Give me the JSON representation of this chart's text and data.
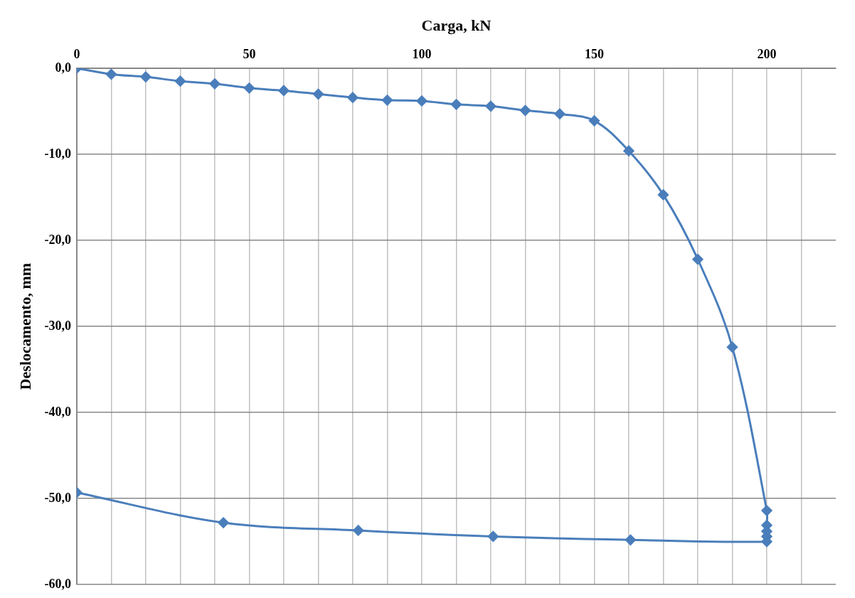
{
  "chart_data": {
    "type": "line",
    "xlabel": "Carga, kN",
    "ylabel": "Deslocamento, mm",
    "x": [
      0,
      10,
      20,
      30,
      40,
      50,
      60,
      70,
      80,
      90,
      100,
      110,
      120,
      130,
      140,
      150,
      160,
      170,
      180,
      190,
      200,
      200,
      200,
      200,
      200,
      160.5,
      120.7,
      81.6,
      42.5,
      0
    ],
    "series": [
      {
        "color": "#4a7ebb",
        "values": [
          0,
          -0.7,
          -1.0,
          -1.5,
          -1.8,
          -2.3,
          -2.6,
          -3.0,
          -3.4,
          -3.7,
          -3.8,
          -4.2,
          -4.4,
          -4.9,
          -5.3,
          -6.1,
          -9.6,
          -14.7,
          -22.2,
          -32.4,
          -51.4,
          -53.1,
          -53.8,
          -54.4,
          -55.0,
          -54.8,
          -54.4,
          -53.7,
          -52.8,
          -49.3
        ]
      }
    ],
    "xlim": [
      0,
      220
    ],
    "xticks": [
      0,
      {
        "value": 10,
        "label": null
      },
      {
        "value": 20,
        "label": null
      },
      {
        "value": 30,
        "label": null
      },
      {
        "value": 40,
        "label": null
      },
      50,
      {
        "value": 60,
        "label": null
      },
      {
        "value": 70,
        "label": null
      },
      {
        "value": 80,
        "label": null
      },
      {
        "value": 90,
        "label": null
      },
      100,
      {
        "value": 110,
        "label": null
      },
      {
        "value": 120,
        "label": null
      },
      {
        "value": 130,
        "label": null
      },
      {
        "value": 140,
        "label": null
      },
      150,
      {
        "value": 160,
        "label": null
      },
      {
        "value": 170,
        "label": null
      },
      {
        "value": 180,
        "label": null
      },
      {
        "value": 190,
        "label": null
      },
      200,
      {
        "value": 210,
        "label": null
      }
    ],
    "ylim": [
      -60,
      0
    ],
    "yticks": [
      {
        "value": 0,
        "label": "0,0"
      },
      {
        "value": -10,
        "label": "-10,0"
      },
      {
        "value": -20,
        "label": "-20,0"
      },
      {
        "value": -30,
        "label": "-30,0"
      },
      {
        "value": -40,
        "label": "-40,0"
      },
      {
        "value": -50,
        "label": "-50,0"
      },
      {
        "value": -60,
        "label": "-60,0"
      }
    ],
    "grid": true,
    "marker": "diamond",
    "line_style": "solid",
    "legend": false
  }
}
